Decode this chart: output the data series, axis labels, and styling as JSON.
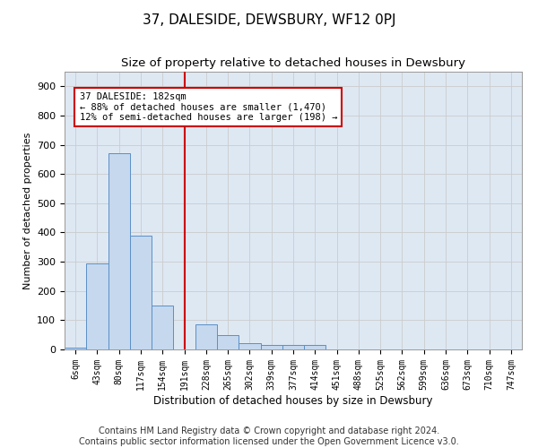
{
  "title": "37, DALESIDE, DEWSBURY, WF12 0PJ",
  "subtitle": "Size of property relative to detached houses in Dewsbury",
  "xlabel": "Distribution of detached houses by size in Dewsbury",
  "ylabel": "Number of detached properties",
  "bar_labels": [
    "6sqm",
    "43sqm",
    "80sqm",
    "117sqm",
    "154sqm",
    "191sqm",
    "228sqm",
    "265sqm",
    "302sqm",
    "339sqm",
    "377sqm",
    "414sqm",
    "451sqm",
    "488sqm",
    "525sqm",
    "562sqm",
    "599sqm",
    "636sqm",
    "673sqm",
    "710sqm",
    "747sqm"
  ],
  "bar_values": [
    5,
    295,
    670,
    390,
    150,
    0,
    85,
    50,
    22,
    15,
    15,
    15,
    0,
    0,
    0,
    0,
    0,
    0,
    0,
    0,
    0
  ],
  "bar_color": "#c5d8ee",
  "bar_edge_color": "#5b8fc7",
  "vline_x": 5.0,
  "vline_color": "#cc0000",
  "annotation_text": "37 DALESIDE: 182sqm\n← 88% of detached houses are smaller (1,470)\n12% of semi-detached houses are larger (198) →",
  "annotation_box_color": "#ffffff",
  "annotation_box_edge": "#cc0000",
  "ylim": [
    0,
    950
  ],
  "yticks": [
    0,
    100,
    200,
    300,
    400,
    500,
    600,
    700,
    800,
    900
  ],
  "grid_color": "#cccccc",
  "bg_color": "#dde8f3",
  "footer": "Contains HM Land Registry data © Crown copyright and database right 2024.\nContains public sector information licensed under the Open Government Licence v3.0.",
  "title_fontsize": 11,
  "subtitle_fontsize": 9.5,
  "footer_fontsize": 7
}
